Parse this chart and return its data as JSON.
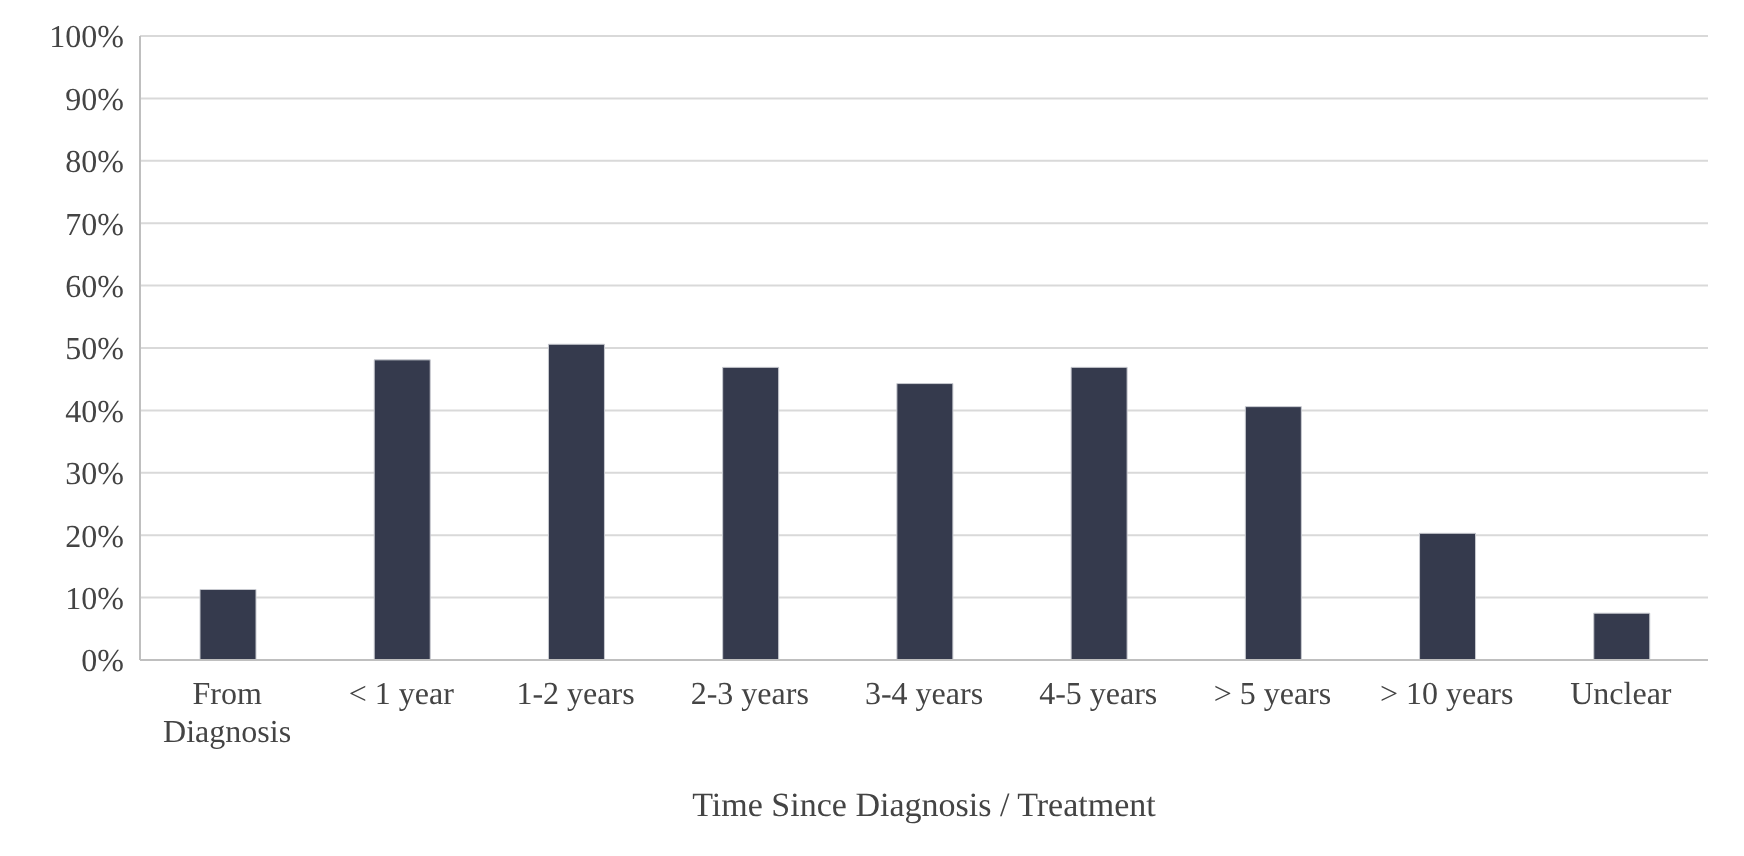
{
  "chart_data": {
    "type": "bar",
    "xlabel": "Time Since Diagnosis / Treatment",
    "categories": [
      "From Diagnosis",
      "< 1 year",
      "1-2 years",
      "2-3 years",
      "3-4 years",
      "4-5 years",
      "> 5 years",
      "> 10 years",
      "Unclear"
    ],
    "values": [
      11.3,
      48.1,
      50.6,
      46.9,
      44.3,
      46.9,
      40.6,
      20.3,
      7.5
    ],
    "color": "#353a4d",
    "ylim": [
      0,
      100
    ],
    "yticks": [
      {
        "value": 0,
        "label": "0%"
      },
      {
        "value": 10,
        "label": "10%"
      },
      {
        "value": 20,
        "label": "20%"
      },
      {
        "value": 30,
        "label": "30%"
      },
      {
        "value": 40,
        "label": "40%"
      },
      {
        "value": 50,
        "label": "50%"
      },
      {
        "value": 60,
        "label": "60%"
      },
      {
        "value": 70,
        "label": "70%"
      },
      {
        "value": 80,
        "label": "80%"
      },
      {
        "value": 90,
        "label": "90%"
      },
      {
        "value": 100,
        "label": "100%"
      }
    ],
    "grid": "y",
    "legend": false
  }
}
